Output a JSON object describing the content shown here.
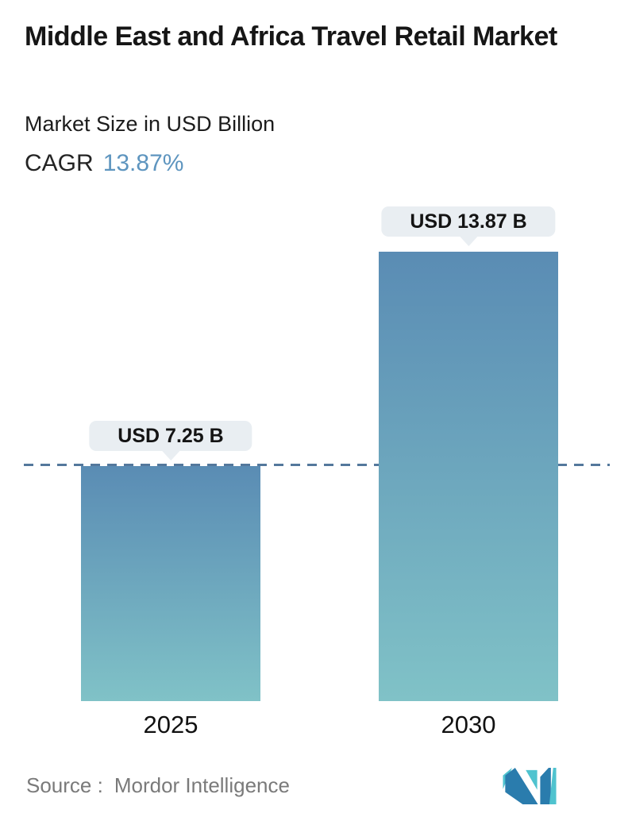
{
  "header": {
    "title": "Middle East and Africa Travel Retail Market",
    "subtitle": "Market Size in USD Billion",
    "cagr_label": "CAGR",
    "cagr_value": "13.87%"
  },
  "chart_data": {
    "type": "bar",
    "categories": [
      "2025",
      "2030"
    ],
    "values": [
      7.25,
      13.87
    ],
    "value_labels": [
      "USD 7.25 B",
      "USD 13.87 B"
    ],
    "unit": "USD Billion",
    "title": "Middle East and Africa Travel Retail Market",
    "xlabel": "",
    "ylabel": "Market Size in USD Billion",
    "ylim": [
      0,
      13.87
    ],
    "grid": false,
    "legend": "none",
    "reference_line": {
      "value": 7.25,
      "style": "dashed"
    }
  },
  "footer": {
    "source_label": "Source :",
    "source_name": "Mordor Intelligence",
    "logo": "mordor-intelligence-logo"
  },
  "colors": {
    "accent_blue": "#5e95bf",
    "bar_gradient_top": "#5a8cb4",
    "bar_gradient_bottom": "#80c2c7",
    "dashed_line": "#54789c",
    "tooltip_bg": "#e9eef2",
    "title_text": "#161616",
    "source_text": "#7a7a7a",
    "logo_blue": "#2a7cad",
    "logo_teal": "#4fc3cf"
  }
}
